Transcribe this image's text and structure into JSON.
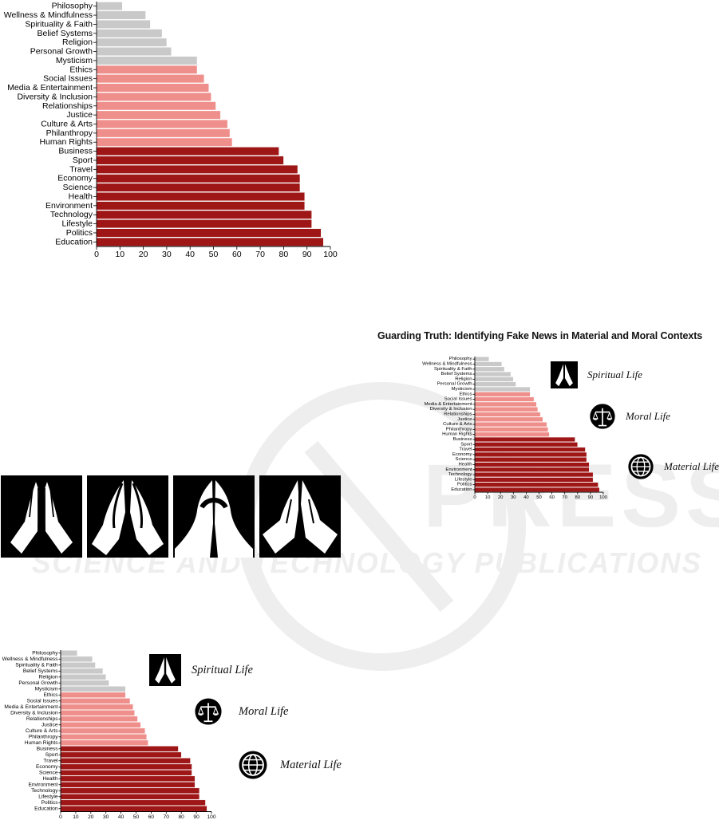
{
  "title": "Guarding Truth: Identifying Fake News in Material and Moral Contexts",
  "watermark": {
    "line1": "PRESS",
    "line2": "SCIENCE AND TECHNOLOGY PUBLICATIONS"
  },
  "legend": {
    "spiritual_label": "Spiritual Life",
    "moral_label": "Moral Life",
    "material_label": "Material Life"
  },
  "icons": {
    "hands_variants": [
      "praying-hands-icon",
      "praying-hands-icon",
      "praying-hands-icon",
      "praying-hands-icon"
    ],
    "spiritual": "praying-hands-icon",
    "moral": "scales-icon",
    "material": "globe-icon"
  },
  "colors": {
    "spiritual": "#c9c9c9",
    "moral": "#ef8f8b",
    "material": "#9e1616"
  },
  "chart_data": {
    "type": "bar",
    "orientation": "horizontal",
    "categories": [
      "Philosophy",
      "Wellness & Mindfulness",
      "Spirituality & Faith",
      "Belief Systems",
      "Religion",
      "Personal Growth",
      "Mysticism",
      "Ethics",
      "Social Issues",
      "Media & Entertainment",
      "Diversity & Inclusion",
      "Relationships",
      "Justice",
      "Culture & Arts",
      "Philanthropy",
      "Human Rights",
      "Business",
      "Sport",
      "Travel",
      "Economy",
      "Science",
      "Health",
      "Environment",
      "Technology",
      "Lifestyle",
      "Politics",
      "Education"
    ],
    "values": [
      11,
      21,
      23,
      28,
      30,
      32,
      43,
      43,
      46,
      48,
      49,
      51,
      53,
      56,
      57,
      58,
      78,
      80,
      86,
      87,
      87,
      89,
      89,
      92,
      92,
      96,
      97
    ],
    "groups": [
      "spiritual",
      "spiritual",
      "spiritual",
      "spiritual",
      "spiritual",
      "spiritual",
      "spiritual",
      "moral",
      "moral",
      "moral",
      "moral",
      "moral",
      "moral",
      "moral",
      "moral",
      "moral",
      "material",
      "material",
      "material",
      "material",
      "material",
      "material",
      "material",
      "material",
      "material",
      "material",
      "material"
    ],
    "xlim": [
      0,
      100
    ],
    "xticks": [
      "0",
      "10",
      "20",
      "30",
      "40",
      "50",
      "60",
      "70",
      "80",
      "90",
      "100"
    ],
    "grid": false
  }
}
